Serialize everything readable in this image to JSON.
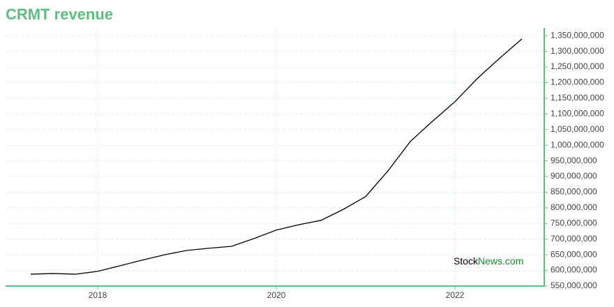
{
  "chart_data": {
    "type": "line",
    "title": "CRMT revenue",
    "x": [
      2017.25,
      2017.5,
      2017.75,
      2018,
      2018.25,
      2018.5,
      2018.75,
      2019,
      2019.25,
      2019.5,
      2019.75,
      2020,
      2020.25,
      2020.5,
      2020.75,
      2021,
      2021.25,
      2021.5,
      2021.75,
      2022,
      2022.25,
      2022.5,
      2022.75
    ],
    "values": [
      588000000,
      590000000,
      588000000,
      597000000,
      615000000,
      633000000,
      650000000,
      664000000,
      671000000,
      677000000,
      702000000,
      729000000,
      746000000,
      760000000,
      795000000,
      836000000,
      918000000,
      1012000000,
      1077000000,
      1139000000,
      1213000000,
      1278000000,
      1340000000
    ],
    "color": "#000000",
    "xlim": [
      2017,
      2023
    ],
    "xticks": [
      2018,
      2020,
      2022
    ],
    "ylim": [
      550000000,
      1375000000
    ],
    "yticks": [
      {
        "value": 550000000,
        "label": "550,000,000"
      },
      {
        "value": 600000000,
        "label": "600,000,000"
      },
      {
        "value": 650000000,
        "label": "650,000,000"
      },
      {
        "value": 700000000,
        "label": "700,000,000"
      },
      {
        "value": 750000000,
        "label": "750,000,000"
      },
      {
        "value": 800000000,
        "label": "800,000,000"
      },
      {
        "value": 850000000,
        "label": "850,000,000"
      },
      {
        "value": 900000000,
        "label": "900,000,000"
      },
      {
        "value": 950000000,
        "label": "950,000,000"
      },
      {
        "value": 1000000000,
        "label": "1,000,000,000"
      },
      {
        "value": 1050000000,
        "label": "1,050,000,000"
      },
      {
        "value": 1100000000,
        "label": "1,100,000,000"
      },
      {
        "value": 1150000000,
        "label": "1,150,000,000"
      },
      {
        "value": 1200000000,
        "label": "1,200,000,000"
      },
      {
        "value": 1250000000,
        "label": "1,250,000,000"
      },
      {
        "value": 1300000000,
        "label": "1,300,000,000"
      },
      {
        "value": 1350000000,
        "label": "1,350,000,000"
      }
    ],
    "grid": true,
    "axis_color": "#5cbf7f",
    "watermark": [
      "Stock",
      "News.com"
    ]
  }
}
